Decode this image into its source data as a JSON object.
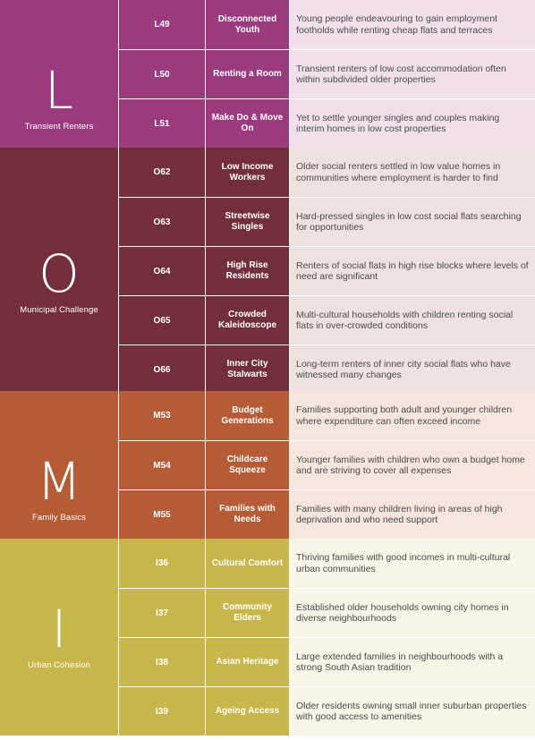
{
  "groups": [
    {
      "letter": "L",
      "name": "Transient Renters",
      "color": "#9b3a7f",
      "light": "#f1e0ec",
      "rows": [
        {
          "code": "L49",
          "type": "Disconnected Youth",
          "desc": "Young people endeavouring to gain employment footholds while renting cheap flats and terraces"
        },
        {
          "code": "L50",
          "type": "Renting a Room",
          "desc": "Transient renters of low cost accommodation often within subdivided older properties"
        },
        {
          "code": "L51",
          "type": "Make Do & Move On",
          "desc": "Yet to settle younger singles and couples making interim homes in low cost properties"
        }
      ]
    },
    {
      "letter": "O",
      "name": "Municipal Challenge",
      "color": "#722f3b",
      "light": "#f0e1e1",
      "rows": [
        {
          "code": "O62",
          "type": "Low Income Workers",
          "desc": "Older social renters settled in low value homes in communities where employment is harder to find"
        },
        {
          "code": "O63",
          "type": "Streetwise Singles",
          "desc": "Hard-pressed singles in low cost social flats searching for opportunities"
        },
        {
          "code": "O64",
          "type": "High Rise Residents",
          "desc": "Renters of social flats in high rise blocks where levels of need are significant"
        },
        {
          "code": "O65",
          "type": "Crowded Kaleidoscope",
          "desc": "Multi-cultural households with children renting social flats in over-crowded conditions"
        },
        {
          "code": "O66",
          "type": "Inner City Stalwarts",
          "desc": "Long-term renters of inner city social flats who have witnessed many changes"
        }
      ]
    },
    {
      "letter": "M",
      "name": "Family Basics",
      "color": "#b55b36",
      "light": "#f5e5dc",
      "rows": [
        {
          "code": "M53",
          "type": "Budget Generations",
          "desc": "Families supporting both adult and younger children where expenditure can often exceed income"
        },
        {
          "code": "M54",
          "type": "Childcare Squeeze",
          "desc": "Younger families with children who own a budget home and are striving to cover all expenses"
        },
        {
          "code": "M55",
          "type": "Families with Needs",
          "desc": "Families with many children living in areas of high deprivation and who need support"
        }
      ]
    },
    {
      "letter": "I",
      "name": "Urban Cohesion",
      "color": "#c8b64b",
      "light": "#f8f5e6",
      "rows": [
        {
          "code": "I36",
          "type": "Cultural Comfort",
          "desc": "Thriving families with good incomes in multi-cultural urban communities"
        },
        {
          "code": "I37",
          "type": "Community Elders",
          "desc": "Established older households owning city homes in diverse neighbourhoods"
        },
        {
          "code": "I38",
          "type": "Asian Heritage",
          "desc": "Large extended families in neighbourhoods with a strong South Asian tradition"
        },
        {
          "code": "I39",
          "type": "Ageing Access",
          "desc": "Older residents owning small inner suburban properties with good access to amenities"
        }
      ]
    }
  ]
}
